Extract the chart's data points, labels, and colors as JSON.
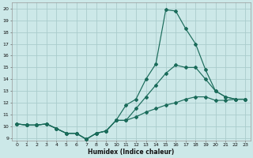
{
  "title": "",
  "xlabel": "Humidex (Indice chaleur)",
  "bg_color": "#cce8e8",
  "grid_color": "#aacccc",
  "line_color": "#1a6b5a",
  "xlim": [
    -0.5,
    23.5
  ],
  "ylim": [
    8.8,
    20.5
  ],
  "yticks": [
    9,
    10,
    11,
    12,
    13,
    14,
    15,
    16,
    17,
    18,
    19,
    20
  ],
  "xticks": [
    0,
    1,
    2,
    3,
    4,
    5,
    6,
    7,
    8,
    9,
    10,
    11,
    12,
    13,
    14,
    15,
    16,
    17,
    18,
    19,
    20,
    21,
    22,
    23
  ],
  "line_top_x": [
    0,
    1,
    2,
    3,
    4,
    5,
    6,
    7,
    8,
    9,
    10,
    11,
    12,
    13,
    14,
    15,
    16,
    17,
    18,
    19,
    20,
    21,
    22,
    23
  ],
  "line_top_y": [
    10.2,
    10.1,
    10.1,
    10.2,
    9.8,
    9.4,
    9.4,
    8.9,
    9.4,
    9.6,
    10.5,
    11.8,
    12.3,
    14.0,
    15.3,
    19.9,
    19.8,
    18.3,
    17.0,
    14.8,
    13.0,
    12.5,
    12.3,
    12.3
  ],
  "line_mid_x": [
    0,
    1,
    2,
    3,
    4,
    5,
    6,
    7,
    8,
    9,
    10,
    11,
    12,
    13,
    14,
    15,
    16,
    17,
    18,
    19,
    20,
    21,
    22,
    23
  ],
  "line_mid_y": [
    10.2,
    10.1,
    10.1,
    10.2,
    9.8,
    9.4,
    9.4,
    8.9,
    9.4,
    9.6,
    10.5,
    10.5,
    11.5,
    12.5,
    13.5,
    14.5,
    15.2,
    15.0,
    15.0,
    14.0,
    13.0,
    12.5,
    12.3,
    12.3
  ],
  "line_bot_x": [
    0,
    1,
    2,
    3,
    4,
    5,
    6,
    7,
    8,
    9,
    10,
    11,
    12,
    13,
    14,
    15,
    16,
    17,
    18,
    19,
    20,
    21,
    22,
    23
  ],
  "line_bot_y": [
    10.2,
    10.1,
    10.1,
    10.2,
    9.8,
    9.4,
    9.4,
    8.9,
    9.4,
    9.6,
    10.5,
    10.5,
    10.8,
    11.2,
    11.5,
    11.8,
    12.0,
    12.3,
    12.5,
    12.5,
    12.2,
    12.2,
    12.3,
    12.3
  ]
}
